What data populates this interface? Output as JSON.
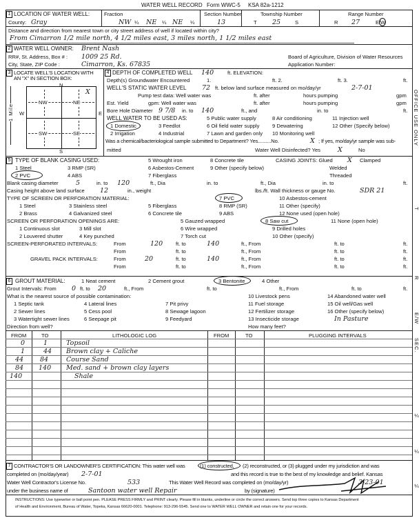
{
  "header": {
    "title": "WATER WELL RECORD",
    "form": "Form WWC-5",
    "ksa": "KSA 82a-1212"
  },
  "s1": {
    "num": "1",
    "label": "LOCATION OF WATER WELL:",
    "county_label": "County:",
    "county": "Gray",
    "fraction_label": "Fraction",
    "fraction": [
      "NW",
      "NE",
      "NE"
    ],
    "quarter": "¼",
    "section_label": "Section Number",
    "section": "13",
    "township_label": "Township Number",
    "t": "T",
    "township": "25",
    "s": "S",
    "range_label": "Range Number",
    "r": "R",
    "range": "27",
    "ew": "E/W",
    "distance_q": "Distance and direction from nearest town or city street address of well if located within city?",
    "distance": "From Cimarron 1/2 mile north, 4 1/2 miles east, 3 miles north, 1 1/2 miles east"
  },
  "s2": {
    "num": "2",
    "owner_label": "WATER WELL OWNER:",
    "owner": "Brent Nash",
    "address_label": "RR#, St. Address, Box # :",
    "address": "1009 25 Rd.",
    "city_label": "City, State, ZIP Code :",
    "city": "Cimarron, Ks. 67835",
    "board": "Board of Agriculture, Division of Water Resources",
    "application": "Application Number:"
  },
  "s3": {
    "num": "3",
    "label1": "LOCATE WELL'S LOCATION WITH",
    "label2": "AN \"X\" IN SECTION BOX:",
    "n": "N",
    "s": "S",
    "e": "E",
    "w": "W",
    "mile": "1 Mile",
    "nw": "NW",
    "ne": "NE",
    "sw": "SW",
    "se": "SE",
    "mark": "X"
  },
  "s4": {
    "num": "4",
    "depth_label": "DEPTH OF COMPLETED WELL",
    "depth": "140",
    "ft_elev": "ft. ELEVATION:",
    "gw_label": "Depth(s) Groundwater Encountered",
    "gw1": "1.",
    "gw2": "ft. 2.",
    "gw3": "ft. 3.",
    "ft": "ft.",
    "static_label": "WELL'S STATIC WATER LEVEL",
    "static": "72",
    "static_tail": "ft. below land surface measured on mo/day/yr",
    "static_date": "2-7-01",
    "pump_label": "Pump test data:   Well water was",
    "after": "ft. after",
    "hours": "hours pumping",
    "gpm": "gpm",
    "yield_label": "Est. Yield",
    "yield_gpm": "gpm: Well water was",
    "bore_label": "Bore Hole Diameter",
    "bore": "9 7/8",
    "in_to": "in. to",
    "bore_to": "140",
    "ft_and": "ft., and",
    "in_to2": "in. to",
    "use_label": "WELL WATER TO BE USED AS:",
    "uses": [
      "1 Domestic",
      "2 Irrigation",
      "3 Feedlot",
      "4 Industrial",
      "5 Public water supply",
      "6 Oil field water supply",
      "7 Lawn and garden only",
      "8 Air conditioning",
      "9 Dewatering",
      "10 Monitoring well",
      "11 Injection well",
      "12 Other (Specify below)"
    ],
    "chem_q": "Was a chemical/bacteriological sample submitted to Department? Yes..........No.",
    "chem_mark": "X",
    "chem_tail": "; If yes, mo/day/yr sample was sub-",
    "mitted": "mitted",
    "disinfected": "Water Well Disinfected?  Yes",
    "dis_mark": "X",
    "no": "No"
  },
  "s5": {
    "num": "5",
    "label": "TYPE OF BLANK CASING USED:",
    "casing": [
      "1 Steel",
      "2 PVC",
      "3 RMP (SR)",
      "4 ABS",
      "5 Wrought iron",
      "6 Asbestos-Cement",
      "7 Fiberglass",
      "8 Concrete tile",
      "9 Other (specify below)"
    ],
    "joints_label": "CASING JOINTS: Glued",
    "glued_mark": "X",
    "clamped": "Clamped",
    "welded": "Welded",
    "threaded": "Threaded",
    "blank_label": "Blank casing diameter",
    "blank_dia": "5",
    "in_to": "in. to",
    "blank_to": "120",
    "ft_dia": "ft., Dia",
    "ft": "ft.",
    "height_label": "Casing height above land surface",
    "height": "12",
    "weight": "in., weight",
    "wall": "lbs./ft. Wall thickness or gauge No.",
    "gauge": "SDR 21",
    "screen_label": "TYPE OF SCREEN OR PERFORATION MATERIAL:",
    "screen": [
      "1 Steel",
      "2 Brass",
      "3 Stainless steel",
      "4 Galvanized steel",
      "5 Fiberglass",
      "6 Concrete tile",
      "7 PVC",
      "8 RMP (SR)",
      "9 ABS",
      "10 Asbestos-cement",
      "11 Other (specify)",
      "12 None used (open hole)"
    ],
    "open_label": "SCREEN OR PERFORATION OPENINGS ARE:",
    "openings": [
      "1 Continuous slot",
      "2 Louvered shutter",
      "3 Mill slot",
      "4 Key punched",
      "5 Gauzed wrapped",
      "6 Wire wrapped",
      "7 Torch cut",
      "8 Saw cut",
      "9 Drilled holes",
      "10 Other (specify)",
      "11 None (open hole)"
    ],
    "perf_label": "SCREEN-PERFORATED INTERVALS:",
    "from": "From",
    "ft_to": "ft. to",
    "ft_from": "ft., From",
    "perf_from": "120",
    "perf_to": "140",
    "gravel_label": "GRAVEL PACK INTERVALS:",
    "gravel_from": "20",
    "gravel_to": "140"
  },
  "s6": {
    "num": "6",
    "label": "GROUT MATERIAL:",
    "grout": [
      "1 Neat cement",
      "2 Cement grout",
      "3 Bentonite",
      "4 Other"
    ],
    "int_label": "Grout Intervals:   From",
    "int_from": "0",
    "ft_to": "ft. to",
    "int_to": "20",
    "ft_from": "ft.,  From",
    "ft_to2": "ft.  to",
    "ft": "ft.",
    "contam_q": "What is the nearest source of possible contamination:",
    "contam": [
      "1 Septic tank",
      "2 Sewer lines",
      "3 Watertight sewer lines",
      "4 Lateral lines",
      "5 Cess pool",
      "6 Seepage pit",
      "7 Pit privy",
      "8 Sewage lagoon",
      "9 Feedyard",
      "10 Livestock pens",
      "11 Fuel storage",
      "12 Fertilizer storage",
      "13 Insecticide storage",
      "14 Abandoned water well",
      "15 Oil well/Gas well",
      "16 Other (specify below)"
    ],
    "other": "In Pasture",
    "direction": "Direction from well?",
    "how_many": "How many feet?"
  },
  "log": {
    "headers": [
      "FROM",
      "TO",
      "LITHOLOGIC LOG",
      "FROM",
      "TO",
      "PLUGGING INTERVALS"
    ],
    "rows": [
      {
        "from": "0",
        "to": "1",
        "desc": "Topsoil"
      },
      {
        "from": "1",
        "to": "44",
        "desc": "Brown clay + Caliche"
      },
      {
        "from": "44",
        "to": "84",
        "desc": "Course Sand"
      },
      {
        "from": "84",
        "to": "140",
        "desc": "Med. sand + brown clay layers"
      },
      {
        "from": "140",
        "to": "",
        "desc": "Shale"
      }
    ]
  },
  "s7": {
    "num": "7",
    "line1a": "CONTRACTOR'S OR LANDOWNER'S CERTIFICATION: This water well was",
    "constructed": "(1) constructed,",
    "line1b": "(2) reconstructed, or (3) plugged under my jurisdiction and was",
    "completed_label": "completed on (mo/day/year)",
    "completed": "2-7-01",
    "true_text": "and this record is true to the best of my knowledge and belief. Kansas",
    "license_label": "Water Well Contractor's License No.",
    "license": "533",
    "record_label": "This Water Well Record was completed on (mo/day/yr)",
    "record_date": "3-23-01",
    "business_label": "under the business name of",
    "business": "Santoon water well Repair",
    "signature_label": "by (signature)"
  },
  "instructions": {
    "line1": "INSTRUCTIONS: Use typewriter or ball point pen. PLEASE PRESS FIRMLY and PRINT clearly. Please fill in blanks, underline or circle the correct answers. Send top three copies to Kansas Department",
    "line2": "of Health and Environment, Bureau of Water, Topeka, Kansas 66620-0001. Telephone: 913-296-5545. Send one to WATER WELL OWNER and retain one for your records."
  },
  "margin": {
    "office": "OFFICE USE ONLY",
    "t": "T",
    "r": "R",
    "ew": "E/W",
    "sec": "SEC.",
    "q1": "¼",
    "q2": "¼",
    "q3": "¼"
  }
}
